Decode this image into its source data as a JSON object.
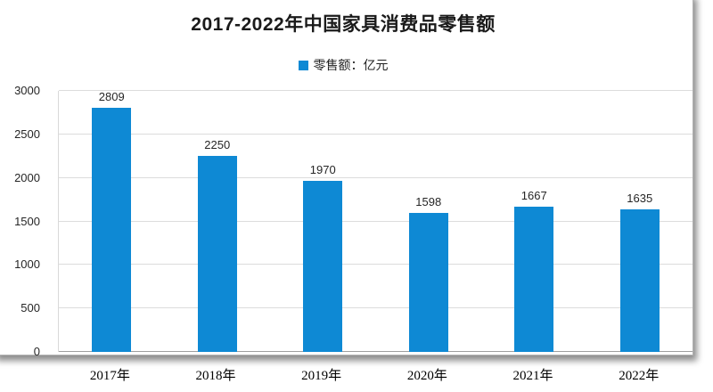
{
  "chart_data": {
    "type": "bar",
    "title": "2017-2022年中国家具消费品零售额",
    "legend_label": "零售额：亿元",
    "legend_position": "top",
    "categories": [
      "2017年",
      "2018年",
      "2019年",
      "2020年",
      "2021年",
      "2022年"
    ],
    "values": [
      2809,
      2250,
      1970,
      1598,
      1667,
      1635
    ],
    "ylim": [
      0,
      3000
    ],
    "ytick_step": 500,
    "yticks": [
      0,
      500,
      1000,
      1500,
      2000,
      2500,
      3000
    ],
    "grid": true,
    "bar_color": "#0e89d4",
    "gridline_color": "#dcdcdc",
    "axis_line_color": "#9f9f9f",
    "title_color": "#1a1a1a",
    "label_color": "#262626"
  }
}
